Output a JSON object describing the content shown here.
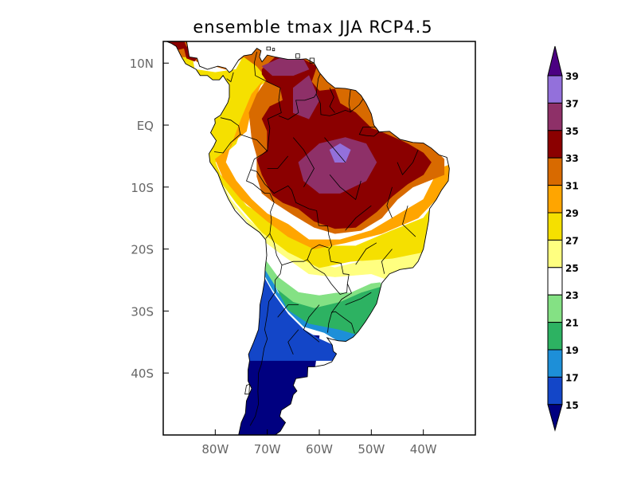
{
  "title": "ensemble tmax JJA RCP4.5",
  "map": {
    "lon_range": [
      -90,
      -30
    ],
    "lat_range": [
      -50,
      13.5
    ],
    "xticks": [
      {
        "value": -80,
        "label": "80W"
      },
      {
        "value": -70,
        "label": "70W"
      },
      {
        "value": -60,
        "label": "60W"
      },
      {
        "value": -50,
        "label": "50W"
      },
      {
        "value": -40,
        "label": "40W"
      }
    ],
    "yticks": [
      {
        "value": 10,
        "label": "10N"
      },
      {
        "value": 0,
        "label": "EQ"
      },
      {
        "value": -10,
        "label": "10S"
      },
      {
        "value": -20,
        "label": "20S"
      },
      {
        "value": -30,
        "label": "30S"
      },
      {
        "value": -40,
        "label": "40S"
      }
    ]
  },
  "colorbar": {
    "levels": [
      "15",
      "17",
      "19",
      "21",
      "23",
      "25",
      "27",
      "29",
      "31",
      "33",
      "35",
      "37",
      "39"
    ],
    "colors": [
      "#000080",
      "#1346c8",
      "#1d8fd8",
      "#2db262",
      "#84e184",
      "#ffffff",
      "#ffff80",
      "#f5e000",
      "#ffa500",
      "#d86a00",
      "#8b0000",
      "#8e3068",
      "#9370db",
      "#4b0082"
    ]
  },
  "fields": [
    {
      "name": "mag",
      "color": "#8e3068",
      "points": [
        [
          -65,
          6
        ],
        [
          -62,
          8
        ],
        [
          -60,
          4
        ],
        [
          -62,
          1
        ],
        [
          -65,
          2
        ]
      ]
    },
    {
      "name": "mag",
      "color": "#8e3068",
      "points": [
        [
          -71,
          9.5
        ],
        [
          -67,
          11
        ],
        [
          -63,
          10.5
        ],
        [
          -62,
          9
        ],
        [
          -65,
          8
        ],
        [
          -69,
          8
        ]
      ]
    },
    {
      "name": "mag",
      "color": "#8e3068",
      "points": [
        [
          -64,
          -6
        ],
        [
          -60,
          -3
        ],
        [
          -55,
          -2
        ],
        [
          -51,
          -3
        ],
        [
          -49,
          -6
        ],
        [
          -51,
          -9
        ],
        [
          -56,
          -11
        ],
        [
          -60,
          -11
        ],
        [
          -63,
          -9
        ]
      ]
    },
    {
      "name": "purple",
      "color": "#9370db",
      "points": [
        [
          -58,
          -4
        ],
        [
          -56,
          -3
        ],
        [
          -54,
          -4
        ],
        [
          -55,
          -6
        ],
        [
          -57,
          -6
        ]
      ]
    }
  ]
}
